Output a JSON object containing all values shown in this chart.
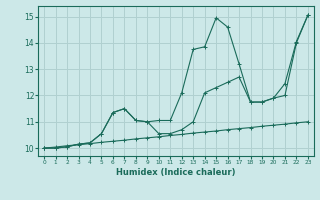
{
  "title": "",
  "xlabel": "Humidex (Indice chaleur)",
  "ylabel": "",
  "bg_color": "#cce8e8",
  "grid_color": "#b0d0d0",
  "line_color": "#1a6b5a",
  "xlim": [
    -0.5,
    23.5
  ],
  "ylim": [
    9.7,
    15.4
  ],
  "xticks": [
    0,
    1,
    2,
    3,
    4,
    5,
    6,
    7,
    8,
    9,
    10,
    11,
    12,
    13,
    14,
    15,
    16,
    17,
    18,
    19,
    20,
    21,
    22,
    23
  ],
  "yticks": [
    10,
    11,
    12,
    13,
    14,
    15
  ],
  "line1_x": [
    0,
    1,
    2,
    3,
    4,
    5,
    6,
    7,
    8,
    9,
    10,
    11,
    12,
    13,
    14,
    15,
    16,
    17,
    18,
    19,
    20,
    21,
    22,
    23
  ],
  "line1_y": [
    10.0,
    10.04,
    10.09,
    10.13,
    10.17,
    10.22,
    10.26,
    10.3,
    10.35,
    10.39,
    10.43,
    10.48,
    10.52,
    10.57,
    10.61,
    10.65,
    10.7,
    10.74,
    10.78,
    10.83,
    10.87,
    10.91,
    10.96,
    11.0
  ],
  "line2_x": [
    0,
    1,
    2,
    3,
    4,
    5,
    6,
    7,
    8,
    9,
    10,
    11,
    12,
    13,
    14,
    15,
    16,
    17,
    18,
    19,
    20,
    21,
    22,
    23
  ],
  "line2_y": [
    10.0,
    10.0,
    10.05,
    10.15,
    10.2,
    10.55,
    11.35,
    11.5,
    11.05,
    11.0,
    11.05,
    11.05,
    12.1,
    13.75,
    13.85,
    14.95,
    14.6,
    13.2,
    11.75,
    11.75,
    11.9,
    12.0,
    14.0,
    15.05
  ],
  "line3_x": [
    0,
    1,
    2,
    3,
    4,
    5,
    6,
    7,
    8,
    9,
    10,
    11,
    12,
    13,
    14,
    15,
    16,
    17,
    18,
    19,
    20,
    21,
    22,
    23
  ],
  "line3_y": [
    10.0,
    10.0,
    10.05,
    10.15,
    10.2,
    10.55,
    11.35,
    11.5,
    11.05,
    11.0,
    10.55,
    10.55,
    10.7,
    11.0,
    12.1,
    12.3,
    12.5,
    12.7,
    11.75,
    11.75,
    11.9,
    12.45,
    14.05,
    15.05
  ]
}
